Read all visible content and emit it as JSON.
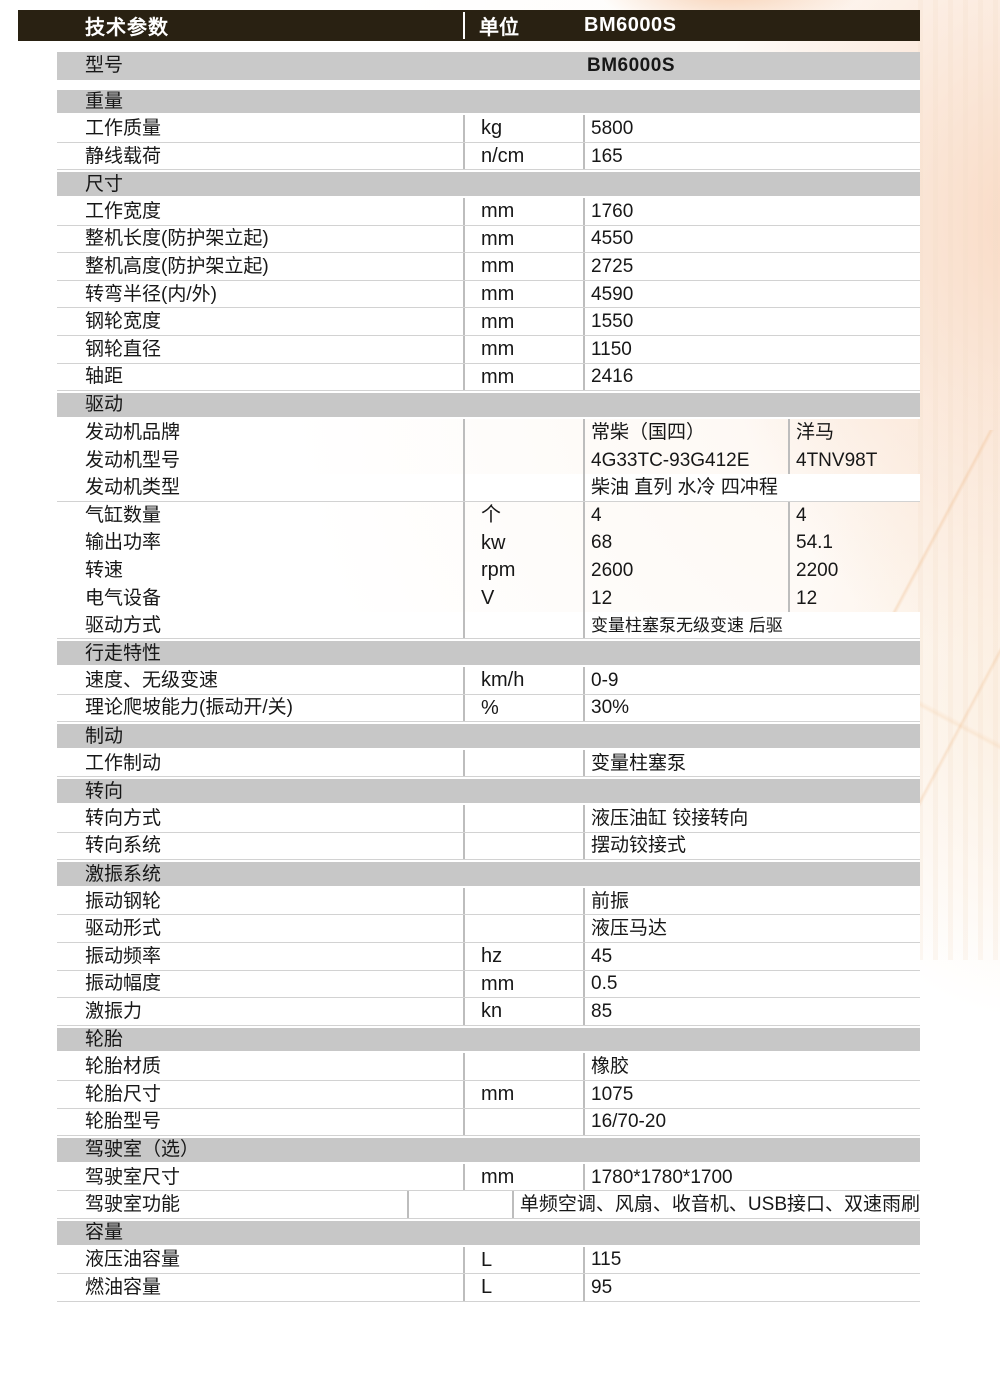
{
  "header": {
    "title": "技术参数",
    "unit_column": "单位",
    "model_column": "BM6000S"
  },
  "colors": {
    "header_bg": "#292112",
    "section_bg": "#c7c7c7",
    "row_bg": "#ffffff",
    "divider": "#bdbdbd",
    "accent_wash": "#f8d8bf"
  },
  "rows": [
    {
      "t": "model",
      "label": "型号",
      "value": "BM6000S"
    },
    {
      "t": "sec",
      "label": "重量"
    },
    {
      "t": "d",
      "label": "工作质量",
      "unit": "kg",
      "value": "5800"
    },
    {
      "t": "d",
      "label": "静线载荷",
      "unit": "n/cm",
      "value": "165"
    },
    {
      "t": "sec",
      "label": "尺寸"
    },
    {
      "t": "d",
      "label": "工作宽度",
      "unit": "mm",
      "value": "1760"
    },
    {
      "t": "d",
      "label": "整机长度(防护架立起)",
      "unit": "mm",
      "value": "4550"
    },
    {
      "t": "d",
      "label": "整机高度(防护架立起)",
      "unit": "mm",
      "value": "2725"
    },
    {
      "t": "d",
      "label": "转弯半径(内/外)",
      "unit": "mm",
      "value": "4590"
    },
    {
      "t": "d",
      "label": "钢轮宽度",
      "unit": "mm",
      "value": "1550"
    },
    {
      "t": "d",
      "label": "钢轮直径",
      "unit": "mm",
      "value": "1150"
    },
    {
      "t": "d",
      "label": "轴距",
      "unit": "mm",
      "value": "2416"
    },
    {
      "t": "sec",
      "label": "驱动"
    },
    {
      "t": "d2",
      "label": "发动机品牌",
      "unit": "",
      "value": "常柴（国四）",
      "value2": "洋马"
    },
    {
      "t": "d2",
      "label": "发动机型号",
      "unit": "",
      "value": "4G33TC-93G412E",
      "value2": "4TNV98T"
    },
    {
      "t": "d",
      "label": "发动机类型",
      "unit": "",
      "value": "柴油 直列 水冷 四冲程"
    },
    {
      "t": "d2",
      "label": "气缸数量",
      "unit": "个",
      "value": "4",
      "value2": "4"
    },
    {
      "t": "d2",
      "label": "输出功率",
      "unit": "kw",
      "value": "68",
      "value2": "54.1"
    },
    {
      "t": "d2",
      "label": "转速",
      "unit": "rpm",
      "value": "2600",
      "value2": "2200"
    },
    {
      "t": "d2",
      "label": "电气设备",
      "unit": "V",
      "value": "12",
      "value2": "12"
    },
    {
      "t": "d",
      "label": "驱动方式",
      "unit": "",
      "value": "变量柱塞泵无级变速  后驱",
      "small": true
    },
    {
      "t": "sec",
      "label": "行走特性"
    },
    {
      "t": "d",
      "label": "速度、无级变速",
      "unit": "km/h",
      "value": "0-9"
    },
    {
      "t": "d",
      "label": "理论爬坡能力(振动开/关)",
      "unit": "%",
      "value": "30%"
    },
    {
      "t": "sec",
      "label": "制动"
    },
    {
      "t": "d",
      "label": "工作制动",
      "unit": "",
      "value": "变量柱塞泵"
    },
    {
      "t": "sec",
      "label": "转向"
    },
    {
      "t": "d",
      "label": "转向方式",
      "unit": "",
      "value": "液压油缸 铰接转向"
    },
    {
      "t": "d",
      "label": "转向系统",
      "unit": "",
      "value": "摆动铰接式"
    },
    {
      "t": "sec",
      "label": "激振系统"
    },
    {
      "t": "d",
      "label": "振动钢轮",
      "unit": "",
      "value": "前振"
    },
    {
      "t": "d",
      "label": "驱动形式",
      "unit": "",
      "value": "液压马达"
    },
    {
      "t": "d",
      "label": "振动频率",
      "unit": "hz",
      "value": "45"
    },
    {
      "t": "d",
      "label": "振动幅度",
      "unit": "mm",
      "value": "0.5"
    },
    {
      "t": "d",
      "label": "激振力",
      "unit": "kn",
      "value": "85"
    },
    {
      "t": "sec",
      "label": "轮胎"
    },
    {
      "t": "d",
      "label": "轮胎材质",
      "unit": "",
      "value": "橡胶"
    },
    {
      "t": "d",
      "label": "轮胎尺寸",
      "unit": "mm",
      "value": "1075"
    },
    {
      "t": "d",
      "label": "轮胎型号",
      "unit": "",
      "value": "16/70-20"
    },
    {
      "t": "sec",
      "label": "驾驶室（选）"
    },
    {
      "t": "d",
      "label": "驾驶室尺寸",
      "unit": "mm",
      "value": "1780*1780*1700"
    },
    {
      "t": "d",
      "label": "驾驶室功能",
      "unit": "",
      "value": "单频空调、风扇、收音机、USB接口、双速雨刷"
    },
    {
      "t": "sec",
      "label": "容量"
    },
    {
      "t": "d",
      "label": "液压油容量",
      "unit": "L",
      "value": "115"
    },
    {
      "t": "d",
      "label": "燃油容量",
      "unit": "L",
      "value": "95"
    }
  ]
}
